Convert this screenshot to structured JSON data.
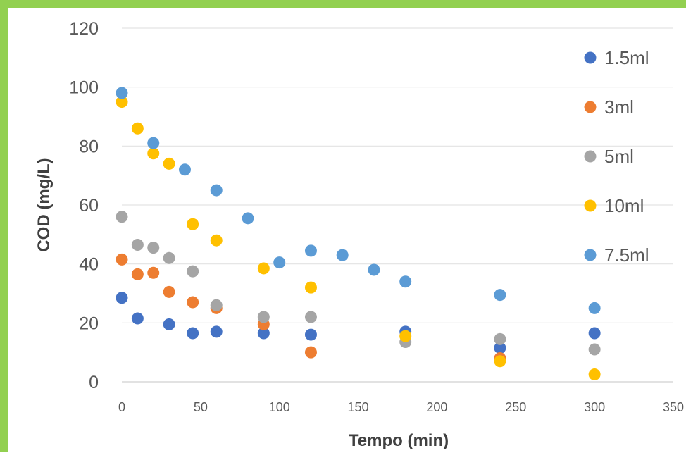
{
  "chart_data": {
    "type": "scatter",
    "title": "",
    "xlabel": "Tempo (min)",
    "ylabel": "COD (mg/L)",
    "xlim": [
      0,
      350
    ],
    "ylim": [
      0,
      120
    ],
    "xticks": [
      "0",
      "50",
      "100",
      "150",
      "200",
      "250",
      "300",
      "350"
    ],
    "yticks": [
      "0",
      "20",
      "40",
      "60",
      "80",
      "100",
      "120"
    ],
    "grid": "horizontal",
    "legend_position": "right",
    "series": [
      {
        "name": "1.5ml",
        "color": "#4472c4",
        "points": [
          [
            0,
            28.5
          ],
          [
            10,
            21.5
          ],
          [
            30,
            19.5
          ],
          [
            45,
            16.5
          ],
          [
            60,
            17
          ],
          [
            90,
            16.5
          ],
          [
            120,
            16
          ],
          [
            180,
            17
          ],
          [
            240,
            11.5
          ],
          [
            300,
            16.5
          ]
        ]
      },
      {
        "name": "3ml",
        "color": "#ed7d31",
        "points": [
          [
            0,
            41.5
          ],
          [
            10,
            36.5
          ],
          [
            20,
            37
          ],
          [
            30,
            30.5
          ],
          [
            45,
            27
          ],
          [
            60,
            25
          ],
          [
            90,
            19.5
          ],
          [
            120,
            10
          ],
          [
            240,
            8
          ]
        ]
      },
      {
        "name": "5ml",
        "color": "#a5a5a5",
        "points": [
          [
            0,
            56
          ],
          [
            10,
            46.5
          ],
          [
            20,
            45.5
          ],
          [
            30,
            42
          ],
          [
            45,
            37.5
          ],
          [
            60,
            26
          ],
          [
            90,
            22
          ],
          [
            120,
            22
          ],
          [
            180,
            13.5
          ],
          [
            240,
            14.5
          ],
          [
            300,
            11
          ]
        ]
      },
      {
        "name": "10ml",
        "color": "#ffc000",
        "points": [
          [
            0,
            95
          ],
          [
            10,
            86
          ],
          [
            20,
            77.5
          ],
          [
            30,
            74
          ],
          [
            45,
            53.5
          ],
          [
            60,
            48
          ],
          [
            90,
            38.5
          ],
          [
            120,
            32
          ],
          [
            180,
            15.5
          ],
          [
            240,
            7
          ],
          [
            300,
            2.5
          ]
        ]
      },
      {
        "name": "7.5ml",
        "color": "#5b9bd5",
        "points": [
          [
            0,
            98
          ],
          [
            20,
            81
          ],
          [
            40,
            72
          ],
          [
            60,
            65
          ],
          [
            80,
            55.5
          ],
          [
            100,
            40.5
          ],
          [
            120,
            44.5
          ],
          [
            140,
            43
          ],
          [
            160,
            38
          ],
          [
            180,
            34
          ],
          [
            240,
            29.5
          ],
          [
            300,
            25
          ]
        ]
      }
    ]
  }
}
